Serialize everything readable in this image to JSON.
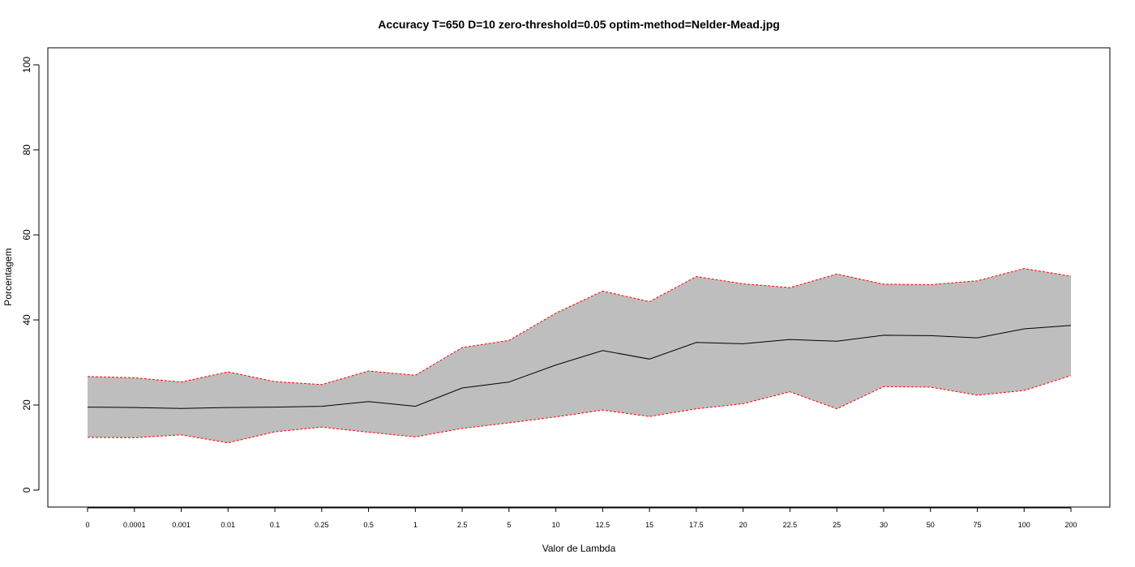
{
  "chart_data": {
    "type": "area",
    "title": "Accuracy T=650 D=10 zero-threshold=0.05 optim-method=Nelder-Mead.jpg",
    "xlabel": "Valor de Lambda",
    "ylabel": "Porcentagem",
    "categories": [
      "0",
      "0.0001",
      "0.001",
      "0.01",
      "0.1",
      "0.25",
      "0.5",
      "1",
      "2.5",
      "5",
      "10",
      "12.5",
      "15",
      "17.5",
      "20",
      "22.5",
      "25",
      "30",
      "50",
      "75",
      "100",
      "200"
    ],
    "ylim": [
      0,
      100
    ],
    "yticks": [
      0,
      20,
      40,
      60,
      80,
      100
    ],
    "grid": false,
    "legend": "none",
    "series": [
      {
        "role": "upper",
        "values": [
          26.7,
          26.4,
          25.4,
          27.8,
          25.5,
          24.8,
          28.0,
          27.0,
          33.5,
          35.2,
          41.6,
          46.8,
          44.3,
          50.2,
          48.5,
          47.6,
          50.8,
          48.4,
          48.3,
          49.2,
          52.1,
          50.3
        ]
      },
      {
        "role": "mean",
        "values": [
          19.5,
          19.4,
          19.2,
          19.4,
          19.5,
          19.7,
          20.8,
          19.7,
          24.0,
          25.4,
          29.4,
          32.8,
          30.8,
          34.7,
          34.4,
          35.4,
          35.0,
          36.4,
          36.3,
          35.8,
          37.9,
          38.7
        ]
      },
      {
        "role": "lower",
        "values": [
          12.4,
          12.3,
          13.0,
          11.1,
          13.7,
          14.8,
          13.6,
          12.5,
          14.5,
          15.8,
          17.2,
          18.8,
          17.3,
          19.1,
          20.3,
          23.1,
          19.1,
          24.3,
          24.2,
          22.3,
          23.4,
          26.9
        ]
      }
    ],
    "colors": {
      "band_fill": "#bebebe",
      "mean_line": "#000000",
      "bound_line": "#ff0000",
      "frame": "#000000"
    }
  }
}
